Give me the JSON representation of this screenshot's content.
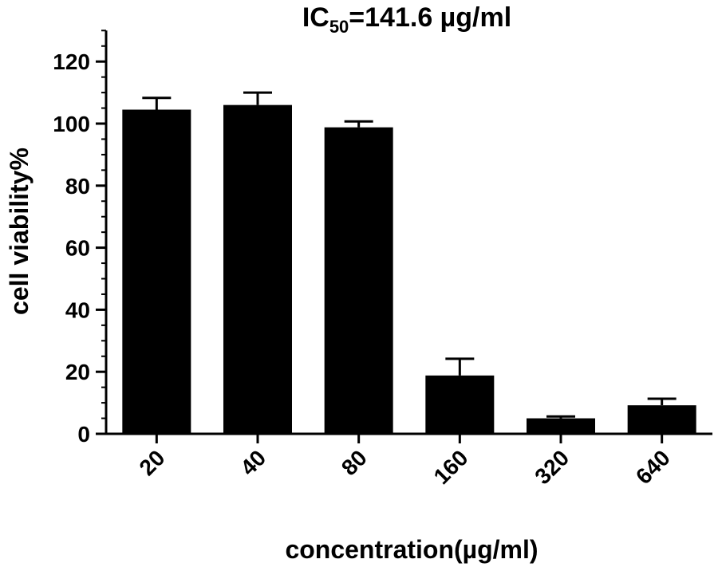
{
  "chart_data": {
    "type": "bar",
    "title": {
      "prefix": "IC",
      "subscript": "50",
      "suffix": "=141.6 µg/ml"
    },
    "xlabel": "concentration(µg/ml)",
    "ylabel": "cell viability%",
    "categories": [
      "20",
      "40",
      "80",
      "160",
      "320",
      "640"
    ],
    "values": [
      104.5,
      106.0,
      98.8,
      18.8,
      5.0,
      9.2
    ],
    "error_upper": [
      3.8,
      4.0,
      1.9,
      5.4,
      0.6,
      2.1
    ],
    "ylim": [
      0,
      130
    ],
    "yticks": [
      0,
      20,
      40,
      60,
      80,
      100,
      120
    ],
    "y_minor_step": 5,
    "grid": false,
    "bar_color": "#000000"
  }
}
